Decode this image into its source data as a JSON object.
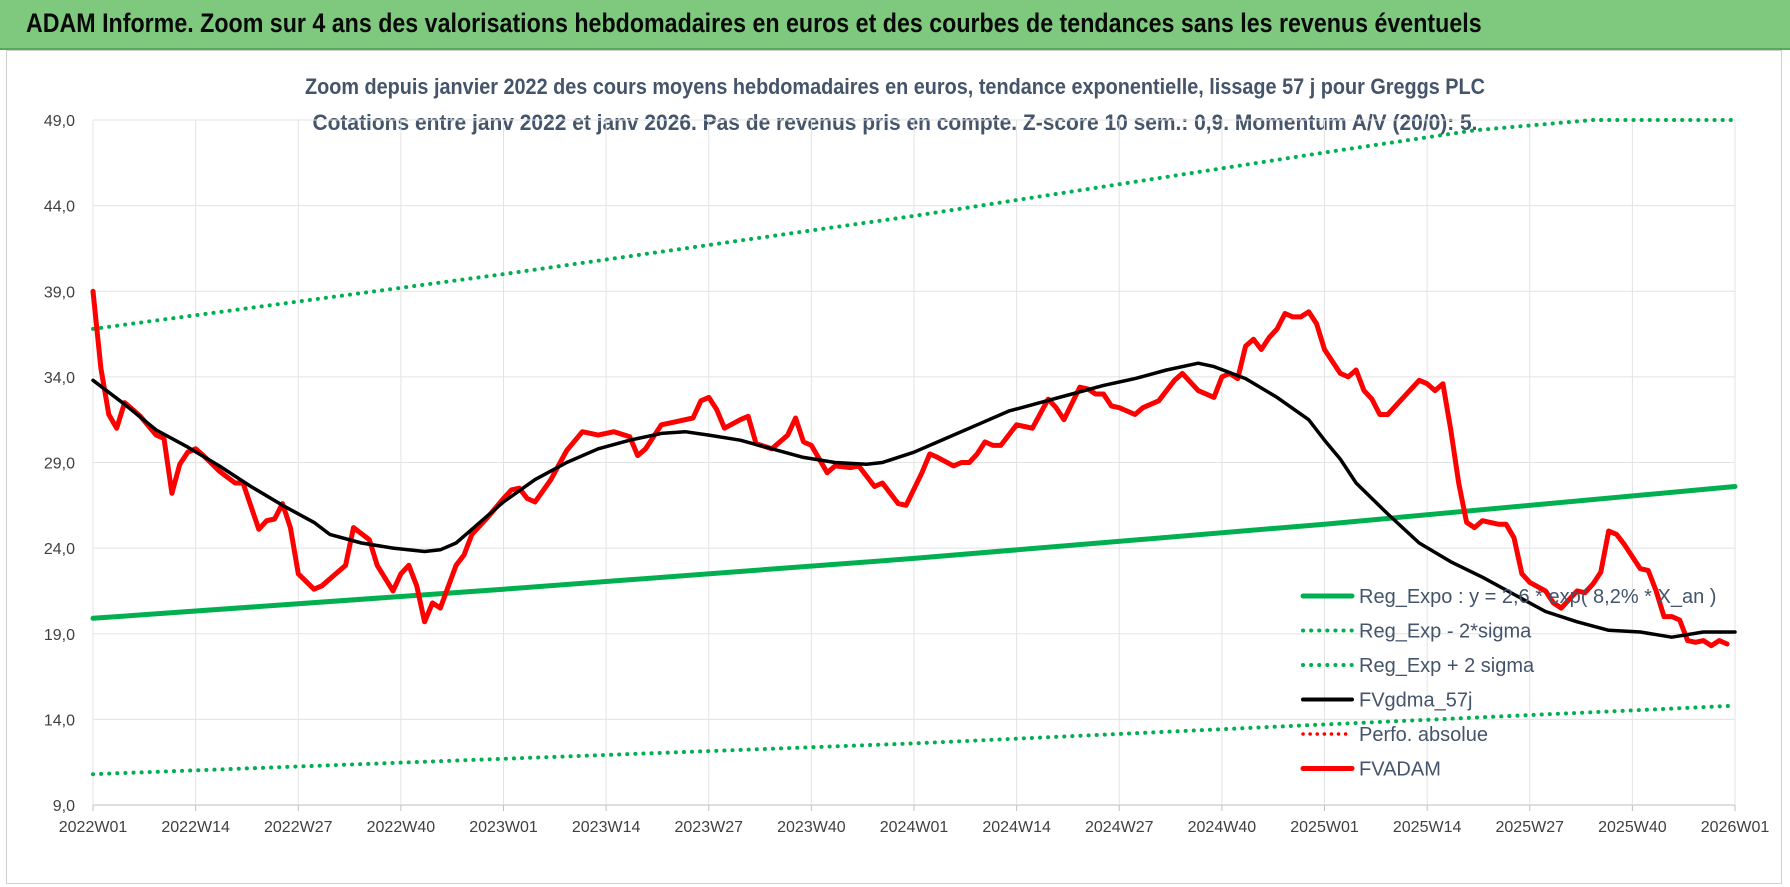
{
  "header": {
    "title": "ADAM Informe. Zoom sur 4 ans des valorisations hebdomadaires en euros et des courbes de tendances sans les revenus éventuels"
  },
  "chart_data": {
    "type": "line",
    "title": "Zoom depuis janvier 2022 des cours moyens hebdomadaires en euros, tendance exponentielle, lissage 57 j pour Greggs PLC",
    "subtitle": "Cotations entre janv 2022 et janv 2026. Pas de revenus pris en compte. Z-score 10 sem.: 0,9. Momentum A/V (20/0): 5.",
    "xlabel": "",
    "ylabel": "",
    "ylim": [
      9,
      49
    ],
    "yticks": [
      "9,0",
      "14,0",
      "19,0",
      "24,0",
      "29,0",
      "34,0",
      "39,0",
      "44,0",
      "49,0"
    ],
    "xticks": [
      "2022W01",
      "2022W14",
      "2022W27",
      "2022W40",
      "2023W01",
      "2023W14",
      "2023W27",
      "2023W40",
      "2024W01",
      "2024W14",
      "2024W27",
      "2024W40",
      "2025W01",
      "2025W14",
      "2025W27",
      "2025W40",
      "2026W01"
    ],
    "x_range_weeks": [
      0,
      208
    ],
    "grid": true,
    "legend_position": "bottom-right",
    "colors": {
      "reg_exp": "#00b050",
      "band": "#00b050",
      "fvgdma": "#000000",
      "perfo": "#ff0000",
      "fvadam": "#ff0000",
      "title": "#44546a",
      "banner": "#7fc97f"
    },
    "series": [
      {
        "name": "Reg_Expo : y = 2,6 * exp( 8,2% *  X_an )",
        "style": "solid-thick",
        "points": [
          [
            0,
            19.9
          ],
          [
            52,
            21.6
          ],
          [
            104,
            23.4
          ],
          [
            156,
            25.4
          ],
          [
            208,
            27.6
          ]
        ]
      },
      {
        "name": "Reg_Exp - 2*sigma",
        "style": "dotted",
        "points": [
          [
            0,
            10.8
          ],
          [
            52,
            11.7
          ],
          [
            104,
            12.6
          ],
          [
            156,
            13.7
          ],
          [
            208,
            14.8
          ]
        ]
      },
      {
        "name": "Reg_Exp + 2 sigma",
        "style": "dotted",
        "points": [
          [
            0,
            36.8
          ],
          [
            52,
            40.0
          ],
          [
            104,
            43.4
          ],
          [
            156,
            47.1
          ],
          [
            175,
            48.4
          ],
          [
            190,
            49.0
          ],
          [
            208,
            49.0
          ]
        ]
      },
      {
        "name": "FVgdma_57j",
        "style": "solid",
        "points": [
          [
            0,
            33.8
          ],
          [
            4,
            32.4
          ],
          [
            8,
            30.9
          ],
          [
            12,
            29.9
          ],
          [
            16,
            28.8
          ],
          [
            20,
            27.6
          ],
          [
            24,
            26.5
          ],
          [
            28,
            25.5
          ],
          [
            30,
            24.8
          ],
          [
            34,
            24.3
          ],
          [
            38,
            24.0
          ],
          [
            42,
            23.8
          ],
          [
            44,
            23.9
          ],
          [
            46,
            24.3
          ],
          [
            48,
            25.1
          ],
          [
            52,
            26.7
          ],
          [
            56,
            28.0
          ],
          [
            60,
            29.0
          ],
          [
            64,
            29.8
          ],
          [
            68,
            30.3
          ],
          [
            72,
            30.7
          ],
          [
            75,
            30.8
          ],
          [
            78,
            30.6
          ],
          [
            82,
            30.3
          ],
          [
            86,
            29.8
          ],
          [
            90,
            29.3
          ],
          [
            94,
            29.0
          ],
          [
            98,
            28.9
          ],
          [
            100,
            29.0
          ],
          [
            104,
            29.6
          ],
          [
            108,
            30.4
          ],
          [
            112,
            31.2
          ],
          [
            116,
            32.0
          ],
          [
            120,
            32.5
          ],
          [
            124,
            33.0
          ],
          [
            128,
            33.5
          ],
          [
            132,
            33.9
          ],
          [
            136,
            34.4
          ],
          [
            140,
            34.8
          ],
          [
            142,
            34.6
          ],
          [
            146,
            33.9
          ],
          [
            150,
            32.8
          ],
          [
            154,
            31.5
          ],
          [
            156,
            30.3
          ],
          [
            158,
            29.2
          ],
          [
            160,
            27.8
          ],
          [
            164,
            26.0
          ],
          [
            168,
            24.3
          ],
          [
            172,
            23.2
          ],
          [
            176,
            22.3
          ],
          [
            180,
            21.3
          ],
          [
            184,
            20.3
          ],
          [
            188,
            19.7
          ],
          [
            192,
            19.2
          ],
          [
            196,
            19.1
          ],
          [
            200,
            18.8
          ],
          [
            204,
            19.1
          ],
          [
            208,
            19.1
          ]
        ]
      },
      {
        "name": "Perfo. absolue",
        "style": "dotted-red",
        "points": []
      },
      {
        "name": "FVADAM",
        "style": "solid-thick",
        "points": [
          [
            0,
            39.0
          ],
          [
            1,
            34.5
          ],
          [
            2,
            31.8
          ],
          [
            3,
            31.0
          ],
          [
            4,
            32.5
          ],
          [
            6,
            31.7
          ],
          [
            8,
            30.6
          ],
          [
            9,
            30.4
          ],
          [
            10,
            27.2
          ],
          [
            11,
            28.9
          ],
          [
            12,
            29.6
          ],
          [
            13,
            29.8
          ],
          [
            14,
            29.4
          ],
          [
            16,
            28.5
          ],
          [
            18,
            27.8
          ],
          [
            19,
            27.8
          ],
          [
            21,
            25.1
          ],
          [
            22,
            25.6
          ],
          [
            23,
            25.7
          ],
          [
            24,
            26.6
          ],
          [
            25,
            25.2
          ],
          [
            26,
            22.5
          ],
          [
            28,
            21.6
          ],
          [
            29,
            21.8
          ],
          [
            31,
            22.6
          ],
          [
            32,
            23.0
          ],
          [
            33,
            25.2
          ],
          [
            35,
            24.5
          ],
          [
            36,
            23.0
          ],
          [
            38,
            21.5
          ],
          [
            39,
            22.5
          ],
          [
            40,
            23.0
          ],
          [
            41,
            21.8
          ],
          [
            42,
            19.7
          ],
          [
            43,
            20.8
          ],
          [
            44,
            20.5
          ],
          [
            46,
            23.0
          ],
          [
            47,
            23.6
          ],
          [
            48,
            24.8
          ],
          [
            50,
            25.8
          ],
          [
            52,
            26.9
          ],
          [
            53,
            27.4
          ],
          [
            54,
            27.5
          ],
          [
            55,
            26.9
          ],
          [
            56,
            26.7
          ],
          [
            58,
            28.0
          ],
          [
            60,
            29.7
          ],
          [
            62,
            30.8
          ],
          [
            64,
            30.6
          ],
          [
            66,
            30.8
          ],
          [
            68,
            30.5
          ],
          [
            69,
            29.4
          ],
          [
            70,
            29.8
          ],
          [
            72,
            31.2
          ],
          [
            74,
            31.4
          ],
          [
            76,
            31.6
          ],
          [
            77,
            32.6
          ],
          [
            78,
            32.8
          ],
          [
            79,
            32.1
          ],
          [
            80,
            31.0
          ],
          [
            82,
            31.5
          ],
          [
            83,
            31.7
          ],
          [
            84,
            30.1
          ],
          [
            86,
            29.8
          ],
          [
            88,
            30.6
          ],
          [
            89,
            31.6
          ],
          [
            90,
            30.2
          ],
          [
            91,
            30.0
          ],
          [
            93,
            28.4
          ],
          [
            94,
            28.8
          ],
          [
            96,
            28.7
          ],
          [
            97,
            28.8
          ],
          [
            99,
            27.6
          ],
          [
            100,
            27.8
          ],
          [
            102,
            26.6
          ],
          [
            103,
            26.5
          ],
          [
            105,
            28.4
          ],
          [
            106,
            29.5
          ],
          [
            107,
            29.3
          ],
          [
            109,
            28.8
          ],
          [
            110,
            29.0
          ],
          [
            111,
            29.0
          ],
          [
            112,
            29.5
          ],
          [
            113,
            30.2
          ],
          [
            114,
            30.0
          ],
          [
            115,
            30.0
          ],
          [
            117,
            31.2
          ],
          [
            118,
            31.1
          ],
          [
            119,
            31.0
          ],
          [
            121,
            32.7
          ],
          [
            122,
            32.2
          ],
          [
            123,
            31.5
          ],
          [
            125,
            33.4
          ],
          [
            126,
            33.3
          ],
          [
            127,
            33.0
          ],
          [
            128,
            33.0
          ],
          [
            129,
            32.3
          ],
          [
            130,
            32.2
          ],
          [
            132,
            31.8
          ],
          [
            133,
            32.2
          ],
          [
            135,
            32.6
          ],
          [
            137,
            33.8
          ],
          [
            138,
            34.2
          ],
          [
            140,
            33.2
          ],
          [
            142,
            32.8
          ],
          [
            143,
            34.0
          ],
          [
            144,
            34.2
          ],
          [
            145,
            33.9
          ],
          [
            146,
            35.8
          ],
          [
            147,
            36.2
          ],
          [
            148,
            35.6
          ],
          [
            149,
            36.3
          ],
          [
            150,
            36.8
          ],
          [
            151,
            37.7
          ],
          [
            152,
            37.5
          ],
          [
            153,
            37.5
          ],
          [
            154,
            37.8
          ],
          [
            155,
            37.1
          ],
          [
            156,
            35.6
          ],
          [
            158,
            34.2
          ],
          [
            159,
            34.0
          ],
          [
            160,
            34.4
          ],
          [
            161,
            33.2
          ],
          [
            162,
            32.7
          ],
          [
            163,
            31.8
          ],
          [
            164,
            31.8
          ],
          [
            166,
            32.8
          ],
          [
            168,
            33.8
          ],
          [
            169,
            33.6
          ],
          [
            170,
            33.2
          ],
          [
            171,
            33.6
          ],
          [
            172,
            30.9
          ],
          [
            173,
            27.8
          ],
          [
            174,
            25.5
          ],
          [
            175,
            25.2
          ],
          [
            176,
            25.6
          ],
          [
            178,
            25.4
          ],
          [
            179,
            25.4
          ],
          [
            180,
            24.6
          ],
          [
            181,
            22.5
          ],
          [
            182,
            22.0
          ],
          [
            184,
            21.5
          ],
          [
            185,
            20.8
          ],
          [
            186,
            20.5
          ],
          [
            188,
            21.5
          ],
          [
            189,
            21.4
          ],
          [
            190,
            21.9
          ],
          [
            191,
            22.6
          ],
          [
            192,
            25.0
          ],
          [
            193,
            24.8
          ],
          [
            194,
            24.2
          ],
          [
            195,
            23.5
          ],
          [
            196,
            22.8
          ],
          [
            197,
            22.7
          ],
          [
            198,
            21.5
          ],
          [
            199,
            20.0
          ],
          [
            200,
            20.0
          ],
          [
            201,
            19.8
          ],
          [
            202,
            18.6
          ],
          [
            203,
            18.5
          ],
          [
            204,
            18.6
          ],
          [
            205,
            18.3
          ],
          [
            206,
            18.6
          ],
          [
            207,
            18.4
          ]
        ]
      }
    ]
  }
}
